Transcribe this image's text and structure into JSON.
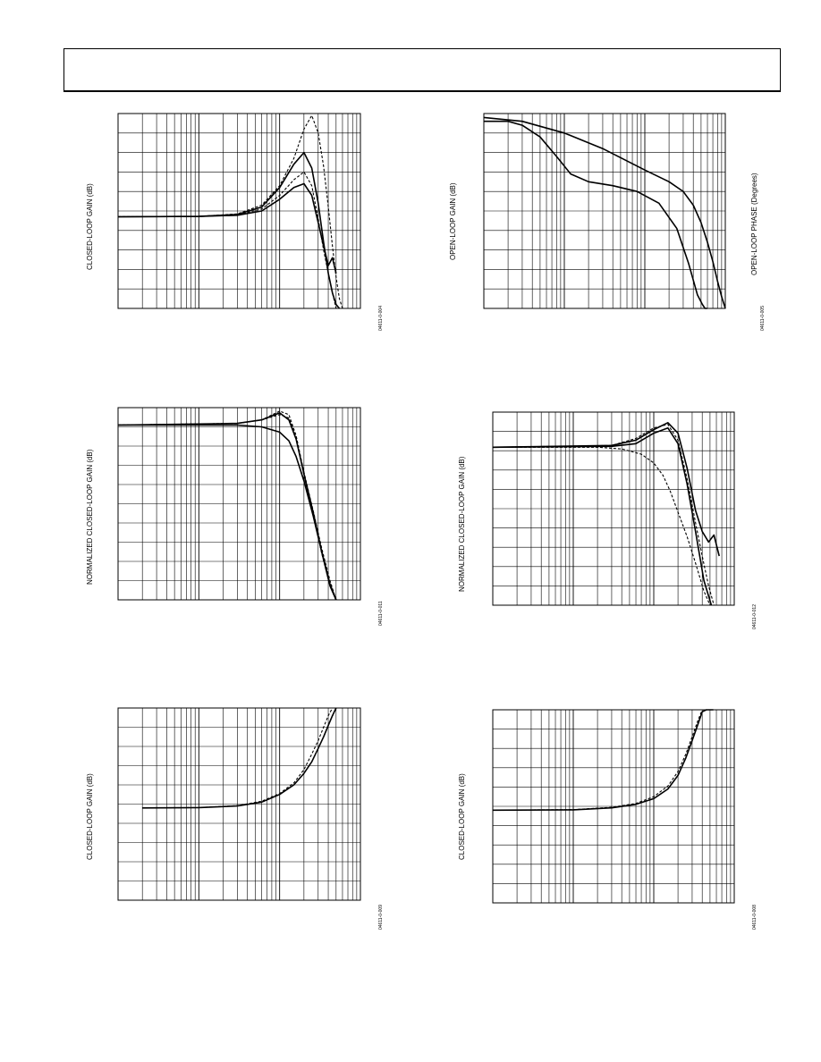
{
  "charts": [
    {
      "id": "c1",
      "ylabel": "CLOSED-LOOP GAIN (dB)",
      "ylabel2": "",
      "figure_id": "04611-0-004"
    },
    {
      "id": "c2",
      "ylabel": "OPEN-LOOP GAIN (dB)",
      "ylabel2": "OPEN-LOOP PHASE (Degrees)",
      "figure_id": "04611-0-005"
    },
    {
      "id": "c3",
      "ylabel": "NORMALIZED CLOSED-LOOP GAIN (dB)",
      "ylabel2": "",
      "figure_id": "04611-0-011"
    },
    {
      "id": "c4",
      "ylabel": "NORMALIZED CLOSED-LOOP GAIN (dB)",
      "ylabel2": "",
      "figure_id": "04611-0-012"
    },
    {
      "id": "c5",
      "ylabel": "CLOSED-LOOP GAIN (dB)",
      "ylabel2": "",
      "figure_id": "04611-0-009"
    },
    {
      "id": "c6",
      "ylabel": "CLOSED-LOOP GAIN (dB)",
      "ylabel2": "",
      "figure_id": "04611-0-008"
    }
  ],
  "chart_data": [
    {
      "type": "line",
      "xscale": "log",
      "xlim": [
        1,
        1000
      ],
      "ylim": [
        0,
        10
      ],
      "grid": true,
      "series": [
        {
          "style": "dashed",
          "x": [
            1,
            10,
            30,
            60,
            100,
            150,
            200,
            250,
            300,
            350,
            400,
            450,
            500,
            550,
            600
          ],
          "y": [
            4.7,
            4.72,
            4.85,
            5.3,
            6.3,
            7.7,
            9.2,
            9.9,
            9.0,
            7.3,
            5.2,
            3.2,
            1.6,
            0.5,
            0
          ]
        },
        {
          "style": "solid",
          "x": [
            1,
            10,
            30,
            60,
            100,
            150,
            200,
            250,
            300,
            350,
            400,
            450,
            500,
            550
          ],
          "y": [
            4.7,
            4.72,
            4.82,
            5.2,
            6.2,
            7.4,
            8.0,
            7.2,
            5.4,
            3.4,
            1.8,
            0.8,
            0.2,
            0
          ]
        },
        {
          "style": "dashed",
          "x": [
            1,
            10,
            30,
            60,
            100,
            150,
            200,
            250,
            300,
            350,
            400,
            450,
            500
          ],
          "y": [
            4.7,
            4.72,
            4.8,
            5.1,
            5.8,
            6.6,
            7.0,
            6.3,
            4.6,
            3.0,
            1.8,
            0.8,
            0
          ]
        },
        {
          "style": "solid",
          "x": [
            1,
            10,
            30,
            60,
            100,
            150,
            200,
            250,
            300,
            350,
            400,
            450,
            500
          ],
          "y": [
            4.7,
            4.72,
            4.78,
            5.0,
            5.6,
            6.2,
            6.4,
            5.8,
            4.4,
            3.2,
            2.2,
            2.6,
            1.8
          ]
        }
      ]
    },
    {
      "type": "line",
      "xscale": "log",
      "xlim": [
        1,
        1000
      ],
      "ylim": [
        0,
        10
      ],
      "grid": true,
      "series": [
        {
          "style": "solid",
          "x": [
            1,
            3,
            10,
            30,
            100,
            200,
            300,
            400,
            500,
            600,
            700,
            800,
            900,
            1000
          ],
          "y": [
            9.8,
            9.6,
            9.0,
            8.2,
            7.1,
            6.5,
            6.0,
            5.3,
            4.4,
            3.4,
            2.4,
            1.4,
            0.6,
            0
          ]
        },
        {
          "style": "solid",
          "x": [
            1,
            2,
            3,
            5,
            8,
            12,
            20,
            40,
            80,
            150,
            250,
            350,
            450,
            520,
            560,
            600
          ],
          "y": [
            9.6,
            9.6,
            9.4,
            8.8,
            7.8,
            6.9,
            6.5,
            6.3,
            6.0,
            5.4,
            4.1,
            2.3,
            0.7,
            0.2,
            0,
            0
          ]
        }
      ]
    },
    {
      "type": "line",
      "xscale": "log",
      "xlim": [
        1,
        1000
      ],
      "ylim": [
        -10,
        1
      ],
      "grid": true,
      "series": [
        {
          "style": "solid",
          "x": [
            1,
            30,
            60,
            100,
            130,
            160,
            200,
            260,
            330,
            420,
            500
          ],
          "y": [
            0,
            0,
            -0.1,
            -0.4,
            -0.9,
            -1.8,
            -3.2,
            -5.2,
            -7.2,
            -9.2,
            -10
          ]
        },
        {
          "style": "dashed",
          "x": [
            1,
            30,
            60,
            100,
            130,
            160,
            200,
            260,
            330,
            420,
            500
          ],
          "y": [
            0,
            0.1,
            0.3,
            0.6,
            0.4,
            -0.7,
            -2.9,
            -5.1,
            -7.3,
            -9.2,
            -10
          ]
        },
        {
          "style": "solid",
          "x": [
            1,
            30,
            60,
            100,
            130,
            160,
            200,
            260,
            330,
            420,
            500
          ],
          "y": [
            0,
            0.1,
            0.3,
            0.7,
            0.3,
            -0.8,
            -2.8,
            -5.0,
            -7.2,
            -9.1,
            -10
          ]
        },
        {
          "style": "dashed",
          "x": [
            1,
            30,
            60,
            100,
            130,
            160,
            200,
            260,
            330,
            420,
            500
          ],
          "y": [
            0,
            0.1,
            0.3,
            0.8,
            0.6,
            -0.6,
            -2.7,
            -4.9,
            -7.0,
            -8.9,
            -10
          ]
        }
      ]
    },
    {
      "type": "line",
      "xscale": "log",
      "xlim": [
        1,
        1000
      ],
      "ylim": [
        -9,
        2
      ],
      "grid": true,
      "series": [
        {
          "style": "solid",
          "x": [
            1,
            30,
            60,
            100,
            150,
            200,
            260,
            330,
            400,
            480,
            560,
            650
          ],
          "y": [
            0,
            0.1,
            0.4,
            1.0,
            1.4,
            0.8,
            -1.2,
            -3.6,
            -4.8,
            -5.4,
            -5.0,
            -6.2
          ]
        },
        {
          "style": "dashed",
          "x": [
            1,
            30,
            60,
            100,
            150,
            200,
            260,
            330,
            400,
            480,
            560
          ],
          "y": [
            0,
            0.1,
            0.5,
            1.1,
            1.3,
            0.4,
            -1.8,
            -4.3,
            -6.2,
            -7.9,
            -9
          ]
        },
        {
          "style": "dashed",
          "x": [
            1,
            20,
            40,
            70,
            100,
            130,
            160,
            200,
            260,
            330,
            420,
            500
          ],
          "y": [
            0,
            0,
            -0.1,
            -0.4,
            -0.9,
            -1.6,
            -2.5,
            -3.7,
            -5.1,
            -6.6,
            -8.2,
            -9
          ]
        },
        {
          "style": "solid",
          "x": [
            1,
            30,
            60,
            100,
            150,
            200,
            260,
            330,
            420,
            520
          ],
          "y": [
            0,
            0.05,
            0.2,
            0.8,
            1.1,
            0.2,
            -2.1,
            -4.8,
            -7.6,
            -9
          ]
        }
      ]
    },
    {
      "type": "line",
      "xscale": "log",
      "xlim": [
        1,
        1000
      ],
      "ylim": [
        0,
        10
      ],
      "grid": true,
      "series": [
        {
          "style": "solid",
          "x": [
            2,
            10,
            30,
            60,
            100,
            150,
            200,
            250,
            300,
            350,
            400,
            450,
            500
          ],
          "y": [
            4.8,
            4.82,
            4.9,
            5.1,
            5.5,
            6.0,
            6.6,
            7.2,
            7.9,
            8.5,
            9.1,
            9.6,
            10
          ]
        },
        {
          "style": "dashed",
          "x": [
            2,
            10,
            30,
            60,
            100,
            150,
            200,
            250,
            300,
            350,
            400,
            450,
            500
          ],
          "y": [
            4.8,
            4.82,
            4.92,
            5.15,
            5.55,
            6.1,
            6.8,
            7.6,
            8.3,
            9.0,
            9.6,
            10,
            10
          ]
        }
      ]
    },
    {
      "type": "line",
      "xscale": "log",
      "xlim": [
        1,
        1000
      ],
      "ylim": [
        0,
        10
      ],
      "grid": true,
      "series": [
        {
          "style": "solid",
          "x": [
            1,
            10,
            30,
            60,
            100,
            150,
            200,
            250,
            300,
            350,
            400,
            450,
            500,
            550
          ],
          "y": [
            4.8,
            4.82,
            4.92,
            5.1,
            5.4,
            5.9,
            6.6,
            7.5,
            8.4,
            9.2,
            9.9,
            10,
            10,
            10
          ]
        },
        {
          "style": "dashed",
          "x": [
            1,
            10,
            30,
            60,
            100,
            150,
            200,
            250,
            300,
            350,
            400,
            450
          ],
          "y": [
            4.8,
            4.83,
            4.95,
            5.15,
            5.5,
            6.05,
            6.8,
            7.7,
            8.6,
            9.4,
            10,
            10
          ]
        }
      ]
    }
  ]
}
